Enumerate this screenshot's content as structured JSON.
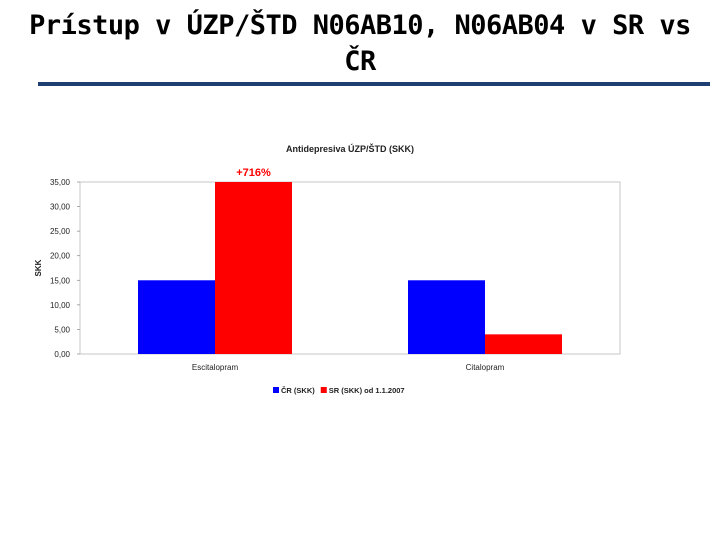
{
  "slide": {
    "title": "Prístup v ÚZP/ŠTD N06AB10, N06AB04 v SR vs ČR",
    "rule_color": "#1f3f73"
  },
  "chart_data": {
    "type": "bar",
    "title": "Antidepresiva ÚZP/ŠTD (SKK)",
    "xlabel": "",
    "ylabel": "SKK",
    "categories": [
      "Escitalopram",
      "Citalopram"
    ],
    "series": [
      {
        "name": "ČR (SKK)",
        "color": "#0000ff",
        "values": [
          15.0,
          15.0
        ]
      },
      {
        "name": "SR (SKK) od 1.1.2007",
        "color": "#ff0000",
        "values": [
          35.0,
          4.0
        ]
      }
    ],
    "ylim": [
      0,
      35
    ],
    "yticks": [
      "0,00",
      "5,00",
      "10,00",
      "15,00",
      "20,00",
      "25,00",
      "30,00",
      "35,00"
    ],
    "grid": false,
    "legend_position": "bottom",
    "annotations": [
      {
        "text": "+716%",
        "category": "Escitalopram",
        "series": "SR (SKK) od 1.1.2007",
        "color": "#ff0000"
      }
    ]
  }
}
